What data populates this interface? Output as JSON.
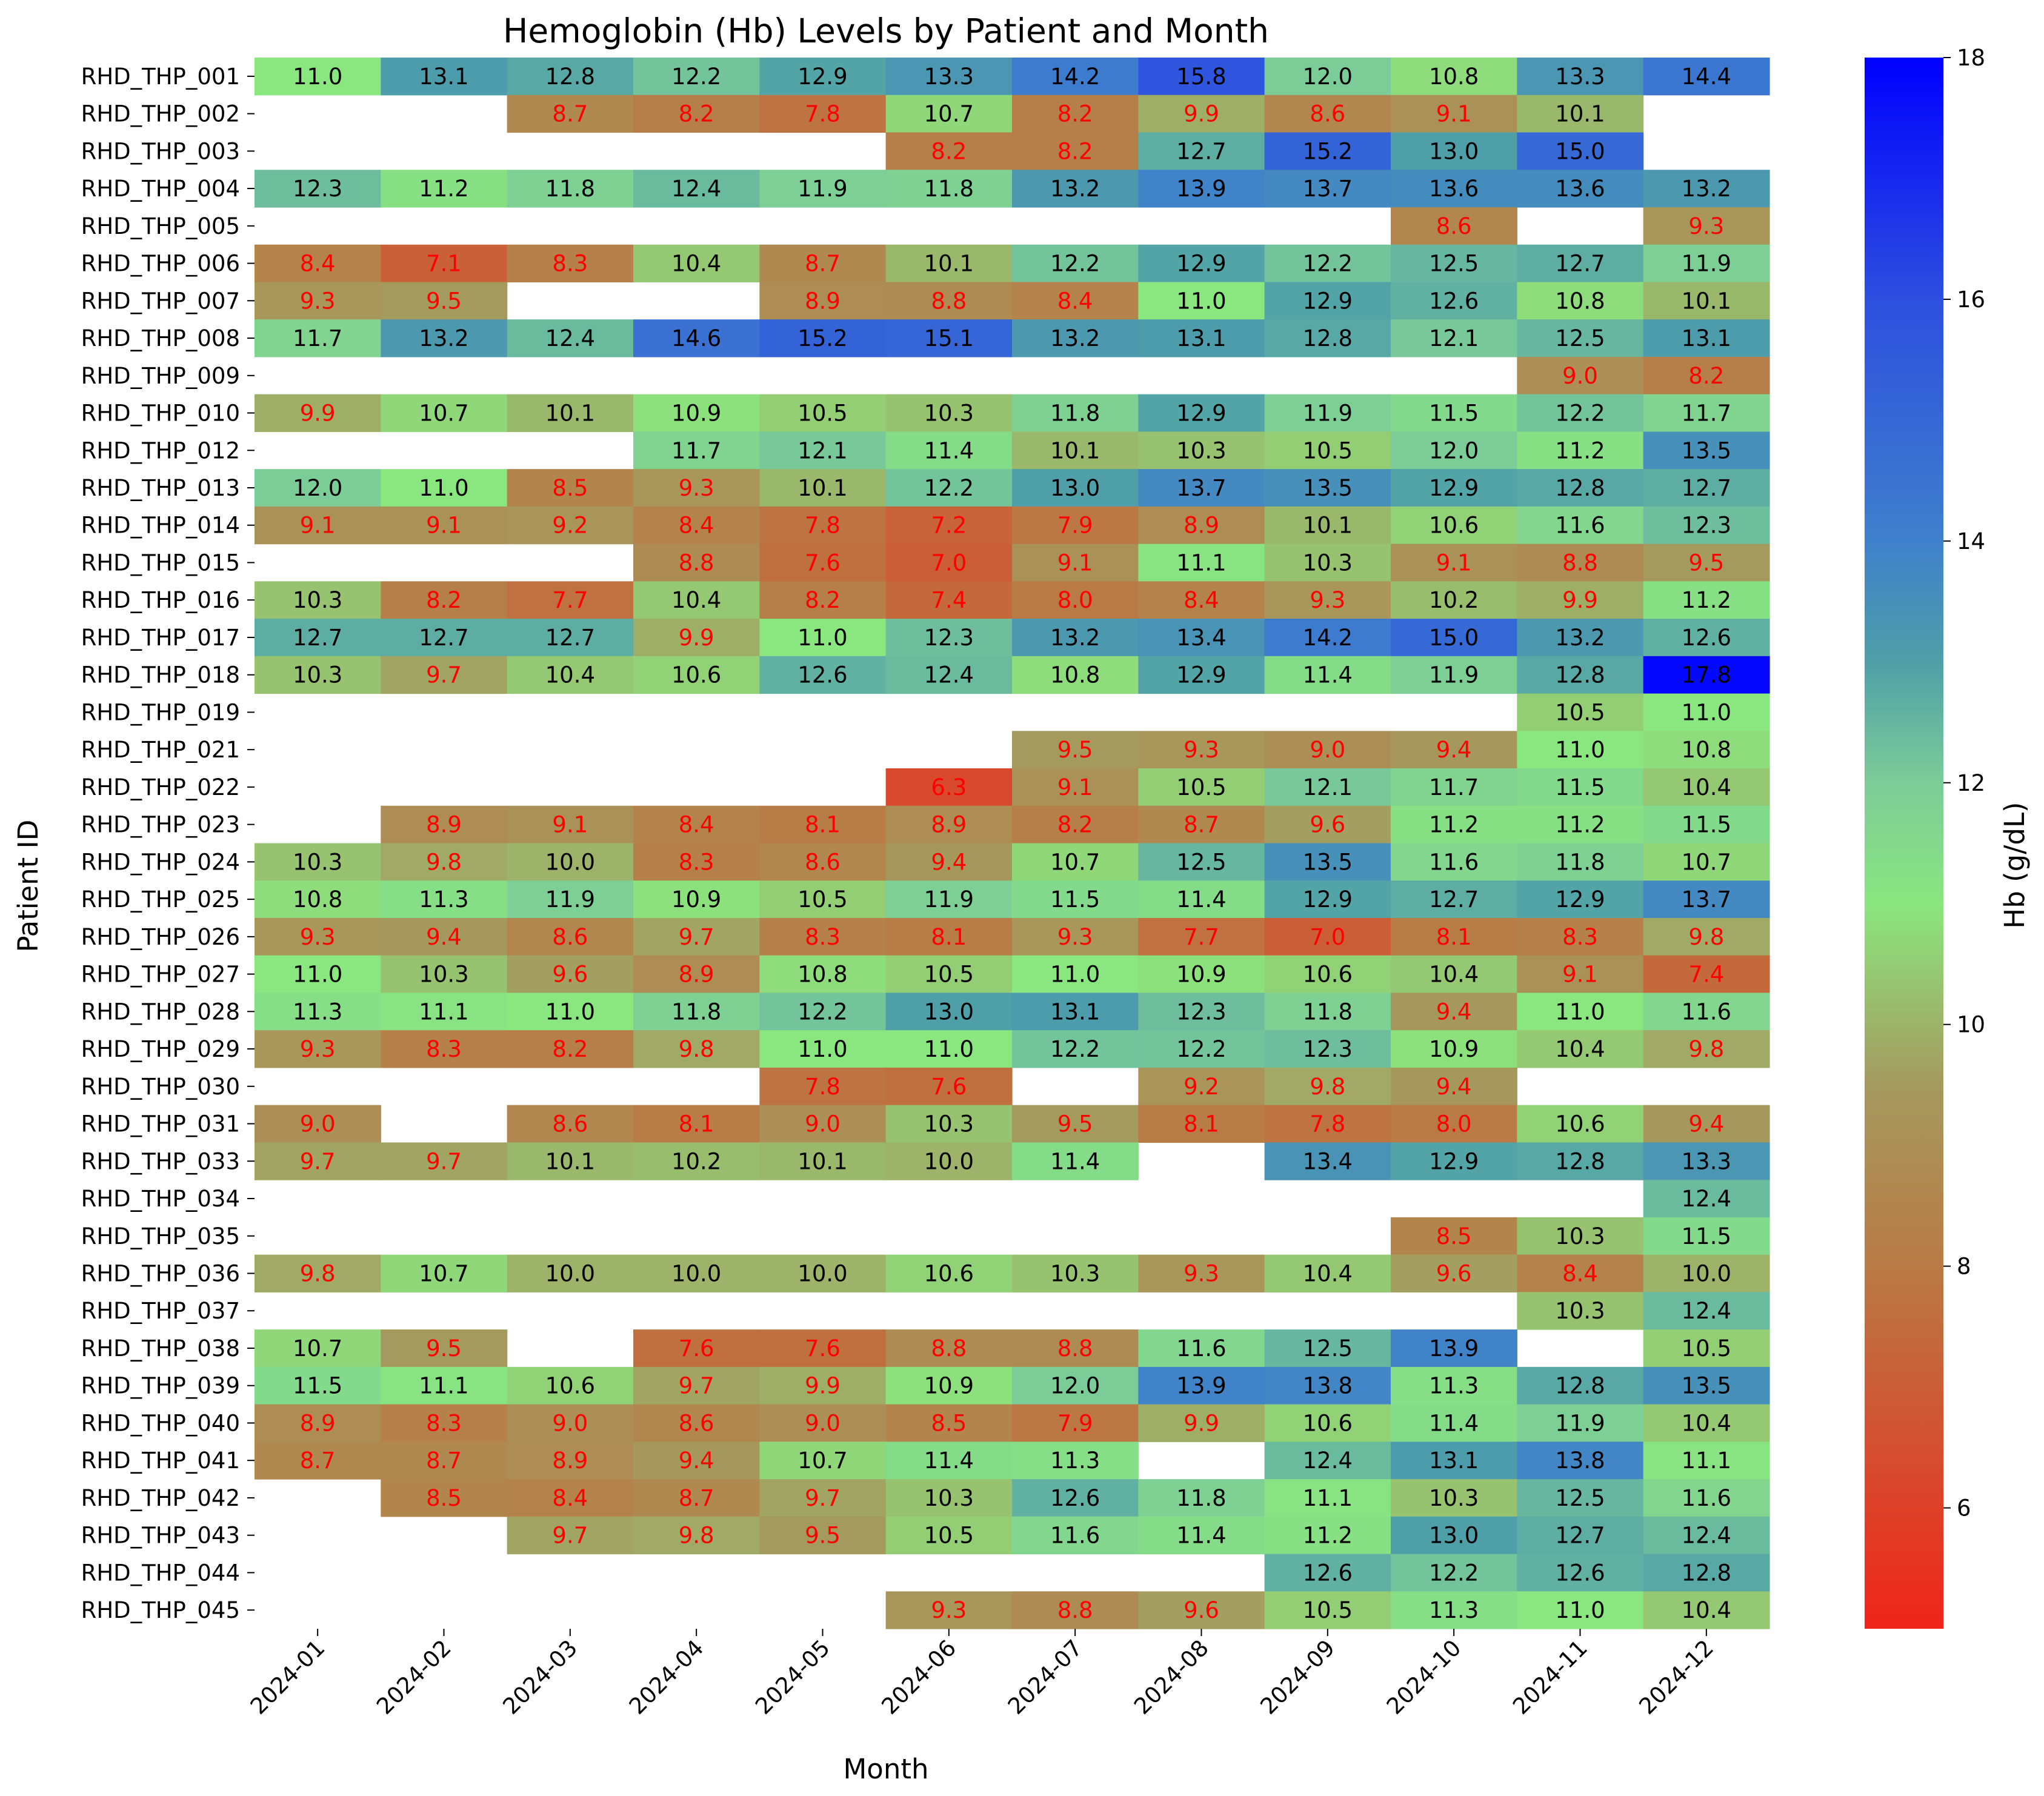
{
  "chart_data": {
    "type": "heatmap",
    "title": "Hemoglobin (Hb) Levels by Patient and Month",
    "xlabel": "Month",
    "ylabel": "Patient ID",
    "colorbar_label": "Hb (g/dL)",
    "colorbar_range": [
      5,
      18
    ],
    "colorbar_ticks": [
      "6",
      "8",
      "10",
      "12",
      "14",
      "16",
      "18"
    ],
    "colorscale": [
      {
        "value": 5,
        "color": "#f0241a"
      },
      {
        "value": 8,
        "color": "#b97a45"
      },
      {
        "value": 9.5,
        "color": "#a59a5e"
      },
      {
        "value": 11,
        "color": "#8ae67f"
      },
      {
        "value": 12,
        "color": "#7ccc98"
      },
      {
        "value": 13,
        "color": "#4f9fa8"
      },
      {
        "value": 14,
        "color": "#3f80cc"
      },
      {
        "value": 16,
        "color": "#2d4fdf"
      },
      {
        "value": 18,
        "color": "#0000ff"
      }
    ],
    "low_label_color": "#ff0000",
    "normal_label_color": "#000000",
    "low_threshold": 10,
    "x": [
      "2024-01",
      "2024-02",
      "2024-03",
      "2024-04",
      "2024-05",
      "2024-06",
      "2024-07",
      "2024-08",
      "2024-09",
      "2024-10",
      "2024-11",
      "2024-12"
    ],
    "y": [
      "RHD_THP_001",
      "RHD_THP_002",
      "RHD_THP_003",
      "RHD_THP_004",
      "RHD_THP_005",
      "RHD_THP_006",
      "RHD_THP_007",
      "RHD_THP_008",
      "RHD_THP_009",
      "RHD_THP_010",
      "RHD_THP_012",
      "RHD_THP_013",
      "RHD_THP_014",
      "RHD_THP_015",
      "RHD_THP_016",
      "RHD_THP_017",
      "RHD_THP_018",
      "RHD_THP_019",
      "RHD_THP_021",
      "RHD_THP_022",
      "RHD_THP_023",
      "RHD_THP_024",
      "RHD_THP_025",
      "RHD_THP_026",
      "RHD_THP_027",
      "RHD_THP_028",
      "RHD_THP_029",
      "RHD_THP_030",
      "RHD_THP_031",
      "RHD_THP_033",
      "RHD_THP_034",
      "RHD_THP_035",
      "RHD_THP_036",
      "RHD_THP_037",
      "RHD_THP_038",
      "RHD_THP_039",
      "RHD_THP_040",
      "RHD_THP_041",
      "RHD_THP_042",
      "RHD_THP_043",
      "RHD_THP_044",
      "RHD_THP_045"
    ],
    "values": [
      [
        11.0,
        13.1,
        12.8,
        12.2,
        12.9,
        13.3,
        14.2,
        15.8,
        12.0,
        10.8,
        13.3,
        14.4
      ],
      [
        null,
        null,
        8.7,
        8.2,
        7.8,
        10.7,
        8.2,
        9.9,
        8.6,
        9.1,
        10.1,
        null
      ],
      [
        null,
        null,
        null,
        null,
        null,
        8.2,
        8.2,
        12.7,
        15.2,
        13.0,
        15.0,
        null
      ],
      [
        12.3,
        11.2,
        11.8,
        12.4,
        11.9,
        11.8,
        13.2,
        13.9,
        13.7,
        13.6,
        13.6,
        13.2
      ],
      [
        null,
        null,
        null,
        null,
        null,
        null,
        null,
        null,
        null,
        8.6,
        null,
        9.3
      ],
      [
        8.4,
        7.1,
        8.3,
        10.4,
        8.7,
        10.1,
        12.2,
        12.9,
        12.2,
        12.5,
        12.7,
        11.9
      ],
      [
        9.3,
        9.5,
        null,
        null,
        8.9,
        8.8,
        8.4,
        11.0,
        12.9,
        12.6,
        10.8,
        10.1
      ],
      [
        11.7,
        13.2,
        12.4,
        14.6,
        15.2,
        15.1,
        13.2,
        13.1,
        12.8,
        12.1,
        12.5,
        13.1
      ],
      [
        null,
        null,
        null,
        null,
        null,
        null,
        null,
        null,
        null,
        null,
        9.0,
        8.2
      ],
      [
        9.9,
        10.7,
        10.1,
        10.9,
        10.5,
        10.3,
        11.8,
        12.9,
        11.9,
        11.5,
        12.2,
        11.7
      ],
      [
        null,
        null,
        null,
        11.7,
        12.1,
        11.4,
        10.1,
        10.3,
        10.5,
        12.0,
        11.2,
        13.5
      ],
      [
        12.0,
        11.0,
        8.5,
        9.3,
        10.1,
        12.2,
        13.0,
        13.7,
        13.5,
        12.9,
        12.8,
        12.7
      ],
      [
        9.1,
        9.1,
        9.2,
        8.4,
        7.8,
        7.2,
        7.9,
        8.9,
        10.1,
        10.6,
        11.6,
        12.3
      ],
      [
        null,
        null,
        null,
        8.8,
        7.6,
        7.0,
        9.1,
        11.1,
        10.3,
        9.1,
        8.8,
        9.5
      ],
      [
        10.3,
        8.2,
        7.7,
        10.4,
        8.2,
        7.4,
        8.0,
        8.4,
        9.3,
        10.2,
        9.9,
        11.2
      ],
      [
        12.7,
        12.7,
        12.7,
        9.9,
        11.0,
        12.3,
        13.2,
        13.4,
        14.2,
        15.0,
        13.2,
        12.6
      ],
      [
        10.3,
        9.7,
        10.4,
        10.6,
        12.6,
        12.4,
        10.8,
        12.9,
        11.4,
        11.9,
        12.8,
        17.8
      ],
      [
        null,
        null,
        null,
        null,
        null,
        null,
        null,
        null,
        null,
        null,
        10.5,
        11.0
      ],
      [
        null,
        null,
        null,
        null,
        null,
        null,
        9.5,
        9.3,
        9.0,
        9.4,
        11.0,
        10.8
      ],
      [
        null,
        null,
        null,
        null,
        null,
        6.3,
        9.1,
        10.5,
        12.1,
        11.7,
        11.5,
        10.4
      ],
      [
        null,
        8.9,
        9.1,
        8.4,
        8.1,
        8.9,
        8.2,
        8.7,
        9.6,
        11.2,
        11.2,
        11.5
      ],
      [
        10.3,
        9.8,
        10.0,
        8.3,
        8.6,
        9.4,
        10.7,
        12.5,
        13.5,
        11.6,
        11.8,
        10.7
      ],
      [
        10.8,
        11.3,
        11.9,
        10.9,
        10.5,
        11.9,
        11.5,
        11.4,
        12.9,
        12.7,
        12.9,
        13.7
      ],
      [
        9.3,
        9.4,
        8.6,
        9.7,
        8.3,
        8.1,
        9.3,
        7.7,
        7.0,
        8.1,
        8.3,
        9.8
      ],
      [
        11.0,
        10.3,
        9.6,
        8.9,
        10.8,
        10.5,
        11.0,
        10.9,
        10.6,
        10.4,
        9.1,
        7.4
      ],
      [
        11.3,
        11.1,
        11.0,
        11.8,
        12.2,
        13.0,
        13.1,
        12.3,
        11.8,
        9.4,
        11.0,
        11.6
      ],
      [
        9.3,
        8.3,
        8.2,
        9.8,
        11.0,
        11.0,
        12.2,
        12.2,
        12.3,
        10.9,
        10.4,
        9.8
      ],
      [
        null,
        null,
        null,
        null,
        7.8,
        7.6,
        null,
        9.2,
        9.8,
        9.4,
        null,
        null
      ],
      [
        9.0,
        null,
        8.6,
        8.1,
        9.0,
        10.3,
        9.5,
        8.1,
        7.8,
        8.0,
        10.6,
        9.4
      ],
      [
        9.7,
        9.7,
        10.1,
        10.2,
        10.1,
        10.0,
        11.4,
        null,
        13.4,
        12.9,
        12.8,
        13.3
      ],
      [
        null,
        null,
        null,
        null,
        null,
        null,
        null,
        null,
        null,
        null,
        null,
        12.4
      ],
      [
        null,
        null,
        null,
        null,
        null,
        null,
        null,
        null,
        null,
        8.5,
        10.3,
        11.5
      ],
      [
        9.8,
        10.7,
        10.0,
        10.0,
        10.0,
        10.6,
        10.3,
        9.3,
        10.4,
        9.6,
        8.4,
        10.0
      ],
      [
        null,
        null,
        null,
        null,
        null,
        null,
        null,
        null,
        null,
        null,
        10.3,
        12.4
      ],
      [
        10.7,
        9.5,
        null,
        7.6,
        7.6,
        8.8,
        8.8,
        11.6,
        12.5,
        13.9,
        null,
        10.5
      ],
      [
        11.5,
        11.1,
        10.6,
        9.7,
        9.9,
        10.9,
        12.0,
        13.9,
        13.8,
        11.3,
        12.8,
        13.5
      ],
      [
        8.9,
        8.3,
        9.0,
        8.6,
        9.0,
        8.5,
        7.9,
        9.9,
        10.6,
        11.4,
        11.9,
        10.4
      ],
      [
        8.7,
        8.7,
        8.9,
        9.4,
        10.7,
        11.4,
        11.3,
        null,
        12.4,
        13.1,
        13.8,
        11.1
      ],
      [
        null,
        8.5,
        8.4,
        8.7,
        9.7,
        10.3,
        12.6,
        11.8,
        11.1,
        10.3,
        12.5,
        11.6
      ],
      [
        null,
        null,
        9.7,
        9.8,
        9.5,
        10.5,
        11.6,
        11.4,
        11.2,
        13.0,
        12.7,
        12.4
      ],
      [
        null,
        null,
        null,
        null,
        null,
        null,
        null,
        null,
        12.6,
        12.2,
        12.6,
        12.8
      ],
      [
        null,
        null,
        null,
        null,
        null,
        9.3,
        8.8,
        9.6,
        10.5,
        11.3,
        11.0,
        10.4
      ]
    ]
  }
}
